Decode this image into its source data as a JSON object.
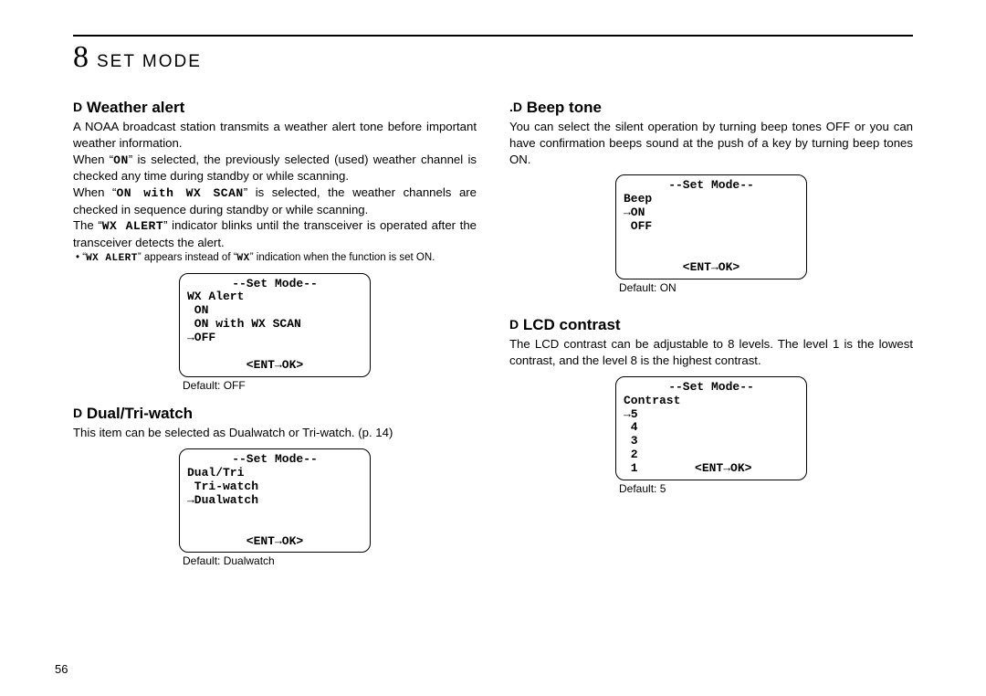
{
  "chapter": {
    "number": "8",
    "title": "SET MODE"
  },
  "page_number": "56",
  "left": {
    "weather_alert": {
      "heading_prefix": "D",
      "heading": "Weather alert",
      "p1": "A NOAA broadcast station transmits a weather alert tone before important weather information.",
      "p2a": "When “",
      "p2_lcd1": "ON",
      "p2b": "” is selected, the previously selected (used) weather channel is checked any time during standby or while scanning.",
      "p3a": "When “",
      "p3_lcd1": "ON with WX SCAN",
      "p3b": "” is selected, the weather channels are checked in sequence during standby or while scanning.",
      "p4a": "The “",
      "p4_lcd1": "WX ALERT",
      "p4b": "” indicator blinks until the transceiver is operated after the transceiver detects the alert.",
      "note_a": "• “",
      "note_lcd1": "WX ALERT",
      "note_b": "” appears instead of “",
      "note_lcd2": "WX",
      "note_c": "” indication when the function is set ON.",
      "lcd": {
        "title": "--Set Mode--",
        "line1": "WX Alert",
        "line2": " ON",
        "line3": " ON with WX SCAN",
        "line4": "→OFF",
        "footer": "<ENT→OK>"
      },
      "default_label": "Default: OFF"
    },
    "dual_tri": {
      "heading_prefix": "D",
      "heading": "Dual/Tri-watch",
      "p1": "This item can be selected as Dualwatch or Tri-watch. (p. 14)",
      "lcd": {
        "title": "--Set Mode--",
        "line1": "Dual/Tri",
        "line2": " Tri-watch",
        "line3": "→Dualwatch",
        "footer": "<ENT→OK>"
      },
      "default_label": "Default: Dualwatch"
    }
  },
  "right": {
    "beep": {
      "heading_prefix": ".D",
      "heading": "Beep tone",
      "p1": "You can select the silent operation by turning beep tones OFF or you can have confirmation beeps sound at the push of a key by turning beep tones ON.",
      "lcd": {
        "title": "--Set Mode--",
        "line1": "Beep",
        "line2": "→ON",
        "line3": " OFF",
        "footer": "<ENT→OK>"
      },
      "default_label": "Default: ON"
    },
    "lcd_contrast": {
      "heading_prefix": "D",
      "heading": "LCD contrast",
      "p1": "The LCD contrast can be adjustable to 8 levels. The level 1 is the lowest contrast, and the level 8 is the highest contrast.",
      "lcd": {
        "title": "--Set Mode--",
        "line1": "Contrast",
        "line2": "→5",
        "line3": " 4",
        "line4": " 3",
        "line5": " 2",
        "line6_and_footer": " 1        <ENT→OK>"
      },
      "default_label": "Default: 5"
    }
  }
}
